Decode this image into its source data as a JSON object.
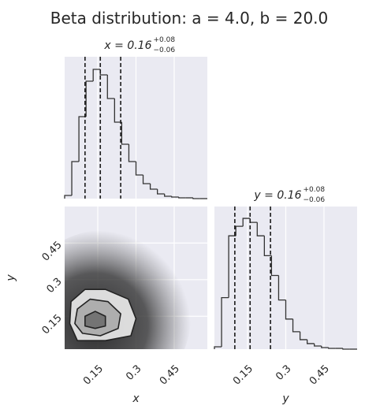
{
  "title": "Beta distribution: a = 4.0, b = 20.0",
  "chart_data": [
    {
      "type": "histogram",
      "title": "x = 0.16",
      "title_upper": "+0.08",
      "title_lower": "−0.06",
      "bins": [
        0.02,
        0.048,
        0.076,
        0.104,
        0.132,
        0.16,
        0.188,
        0.216,
        0.244,
        0.272,
        0.3,
        0.328,
        0.356,
        0.384,
        0.412,
        0.44,
        0.468,
        0.496,
        0.524,
        0.552,
        0.58
      ],
      "counts": [
        4,
        47,
        104,
        149,
        164,
        157,
        127,
        97,
        69,
        47,
        30,
        19,
        12,
        6,
        3,
        2,
        1,
        1,
        0,
        0
      ],
      "quantiles": [
        0.1,
        0.16,
        0.24
      ],
      "xlim": [
        0.02,
        0.58
      ],
      "ylim": [
        0,
        180
      ],
      "xticks": [
        0.15,
        0.3,
        0.45
      ],
      "tick_labels": false,
      "color": "#333333",
      "grid": true
    },
    {
      "type": "contour",
      "xlabel": "x",
      "ylabel": "y",
      "xlim": [
        0.02,
        0.58
      ],
      "ylim": [
        0.015,
        0.6
      ],
      "xticks": [
        0.15,
        0.3,
        0.45
      ],
      "yticks": [
        0.15,
        0.3,
        0.45
      ],
      "contours": [
        {
          "x": [
            0.045,
            0.1,
            0.18,
            0.27,
            0.3,
            0.28,
            0.18,
            0.07,
            0.04
          ],
          "y": [
            0.21,
            0.26,
            0.26,
            0.22,
            0.14,
            0.07,
            0.05,
            0.05,
            0.12
          ],
          "fill": "#ececec"
        },
        {
          "x": [
            0.07,
            0.12,
            0.19,
            0.24,
            0.23,
            0.16,
            0.09,
            0.06
          ],
          "y": [
            0.18,
            0.22,
            0.21,
            0.16,
            0.1,
            0.07,
            0.08,
            0.12
          ],
          "fill": "#a8a8a8"
        },
        {
          "x": [
            0.1,
            0.14,
            0.18,
            0.18,
            0.14,
            0.1
          ],
          "y": [
            0.15,
            0.17,
            0.15,
            0.11,
            0.1,
            0.11
          ],
          "fill": "#6e6e6e"
        }
      ],
      "color": "#222222",
      "grid": true
    },
    {
      "type": "histogram",
      "title": "y = 0.16",
      "title_upper": "+0.08",
      "title_lower": "−0.06",
      "xlabel": "y",
      "bins": [
        0.02,
        0.048,
        0.076,
        0.104,
        0.132,
        0.16,
        0.188,
        0.216,
        0.244,
        0.272,
        0.3,
        0.328,
        0.356,
        0.384,
        0.412,
        0.44,
        0.468,
        0.496,
        0.524,
        0.552,
        0.58
      ],
      "counts": [
        3,
        65,
        143,
        155,
        165,
        160,
        143,
        118,
        93,
        62,
        38,
        22,
        12,
        7,
        4,
        2,
        1,
        1,
        0,
        0
      ],
      "quantiles": [
        0.1,
        0.16,
        0.24
      ],
      "xlim": [
        0.02,
        0.58
      ],
      "ylim": [
        0,
        180
      ],
      "xticks": [
        0.15,
        0.3,
        0.45
      ],
      "tick_labels": true,
      "color": "#333333",
      "grid": true
    }
  ]
}
